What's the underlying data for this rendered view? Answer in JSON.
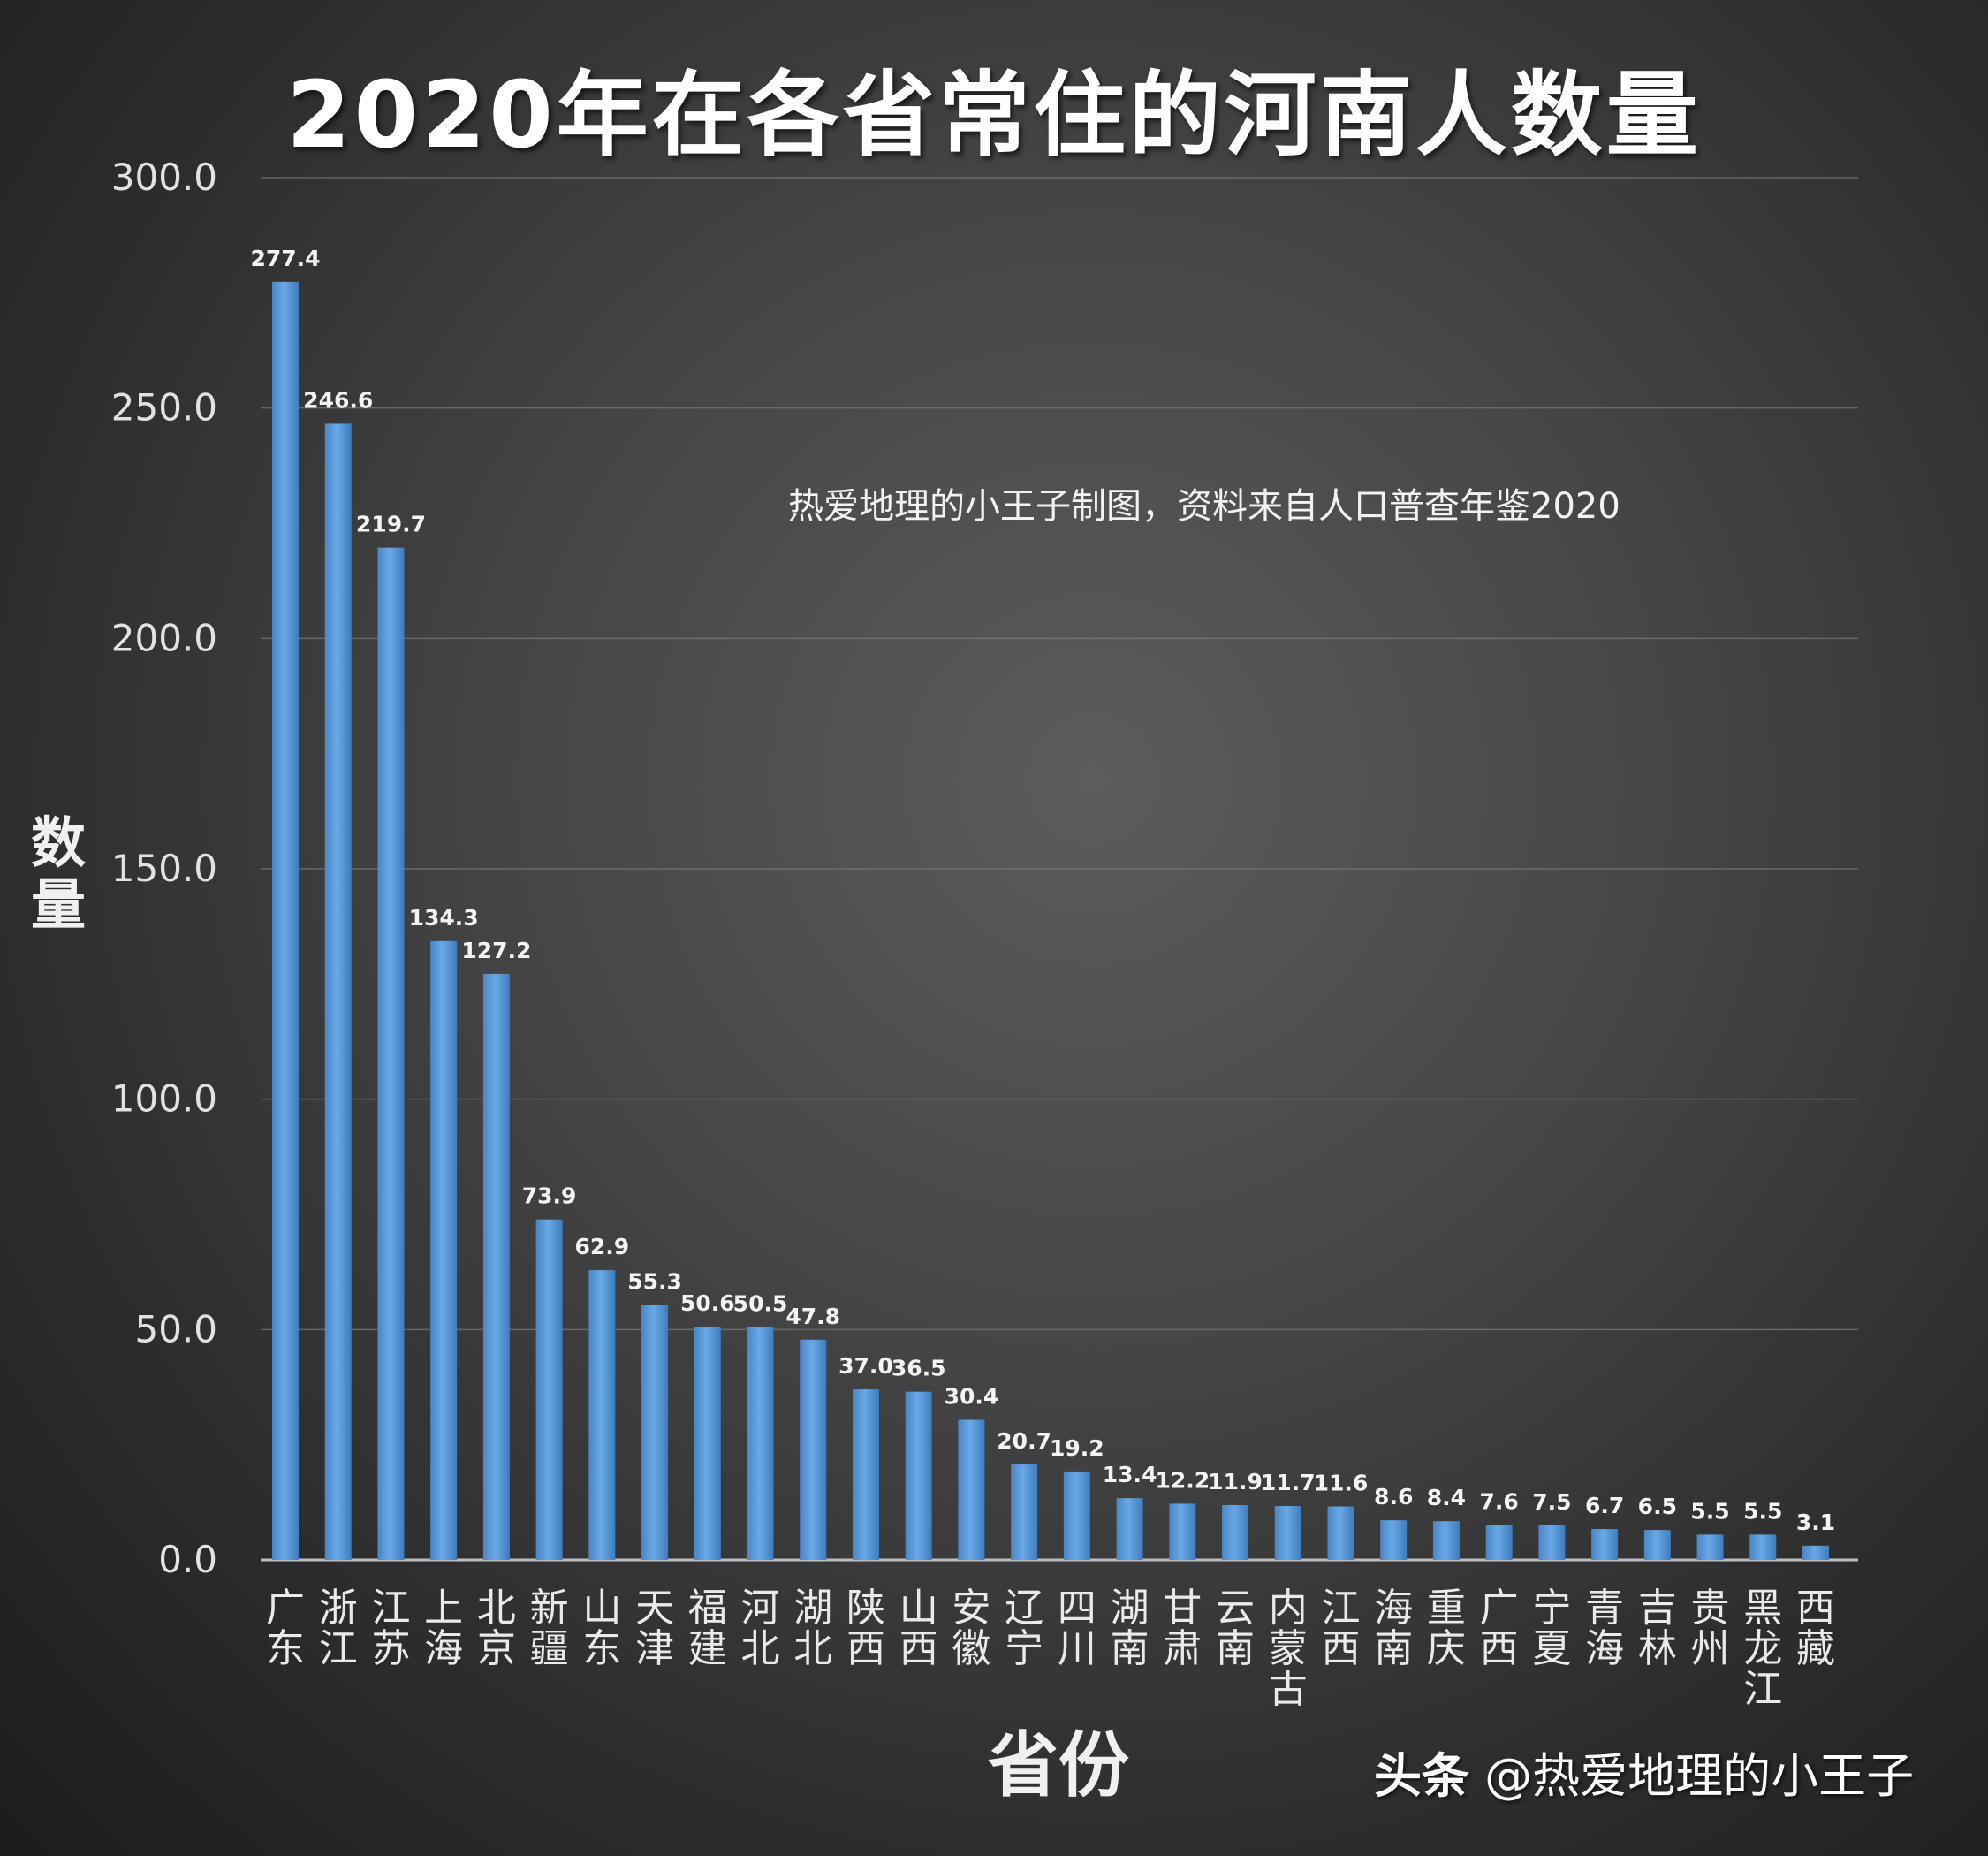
{
  "chart_data": {
    "type": "bar",
    "title": "2020年在各省常住的河南人数量",
    "xlabel": "省份",
    "ylabel": "数量",
    "ylim": [
      0,
      300
    ],
    "yticks": [
      "0.0",
      "50.0",
      "100.0",
      "150.0",
      "200.0",
      "250.0",
      "300.0"
    ],
    "grid": true,
    "bar_color": "#5b9bd5",
    "categories": [
      "广东",
      "浙江",
      "江苏",
      "上海",
      "北京",
      "新疆",
      "山东",
      "天津",
      "福建",
      "河北",
      "湖北",
      "陕西",
      "山西",
      "安徽",
      "辽宁",
      "四川",
      "湖南",
      "甘肃",
      "云南",
      "内蒙古",
      "江西",
      "海南",
      "重庆",
      "广西",
      "宁夏",
      "青海",
      "吉林",
      "贵州",
      "黑龙江",
      "西藏"
    ],
    "values": [
      277.4,
      246.6,
      219.7,
      134.3,
      127.2,
      73.9,
      62.9,
      55.3,
      50.6,
      50.5,
      47.8,
      37.0,
      36.5,
      30.4,
      20.7,
      19.2,
      13.4,
      12.2,
      11.9,
      11.7,
      11.6,
      8.6,
      8.4,
      7.6,
      7.5,
      6.7,
      6.5,
      5.5,
      5.5,
      3.1
    ],
    "data_labels": [
      "277.4",
      "246.6",
      "219.7",
      "134.3",
      "127.2",
      "73.9",
      "62.9",
      "55.3",
      "50.6",
      "50.5",
      "47.8",
      "37.0",
      "36.5",
      "30.4",
      "20.7",
      "19.2",
      "13.4",
      "12.2",
      "11.9",
      "11.7",
      "11.6",
      "8.6",
      "8.4",
      "7.6",
      "7.5",
      "6.7",
      "6.5",
      "5.5",
      "5.5",
      "3.1"
    ],
    "annotation": "热爱地理的小王子制图，资料来自人口普查年鉴2020"
  },
  "watermark": {
    "brand": "头条",
    "handle": "@热爱地理的小王子"
  }
}
